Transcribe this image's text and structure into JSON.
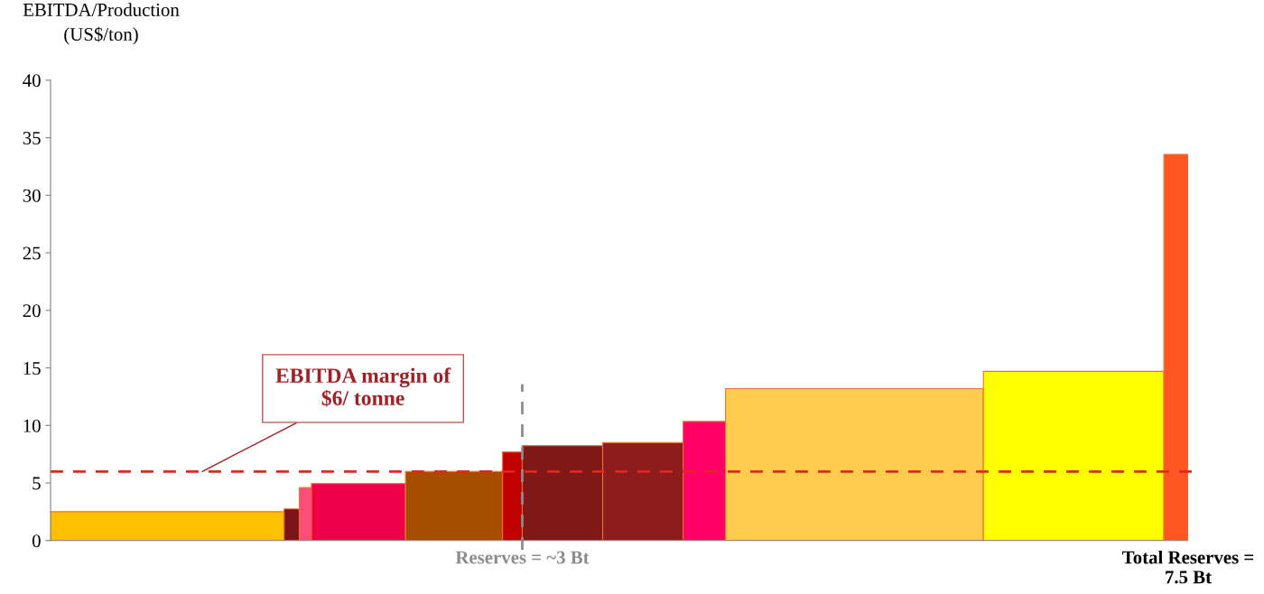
{
  "chart_data": {
    "type": "histogram",
    "ylabel": "EBITDA/Production\n(US$/ton)",
    "bins": [
      0,
      1.54,
      1.64,
      1.72,
      2.34,
      2.98,
      3.11,
      3.64,
      4.17,
      4.45,
      6.15,
      7.34,
      7.5
    ],
    "values": [
      2.5,
      2.75,
      4.6,
      4.95,
      6.0,
      7.7,
      8.25,
      8.5,
      10.35,
      13.2,
      14.7,
      33.55
    ],
    "colors": [
      "#ffc000",
      "#7b1416",
      "#ff4d79",
      "#ee0048",
      "#a64d00",
      "#c00000",
      "#801818",
      "#8f1c1c",
      "#ff0066",
      "#ffcc4d",
      "#ffff00",
      "#ff5722"
    ],
    "xlim": [
      0,
      7.5
    ],
    "xticks": [
      {
        "value": 3.11,
        "label": "Reserves = ~3 Bt"
      },
      {
        "value": 7.5,
        "label": "Total Reserves =\n7.5 Bt"
      }
    ],
    "ylim": [
      0,
      40
    ],
    "yticks": [
      0,
      5,
      10,
      15,
      20,
      25,
      30,
      35,
      40
    ],
    "grid": false,
    "ref_lines": [
      {
        "axis": "y",
        "value": 6,
        "label": "EBITDA margin of\n$6/ tonne",
        "color": "#e0281e",
        "line_style": "dashed"
      },
      {
        "axis": "x",
        "value": 3.11,
        "color": "#8c8c8c",
        "line_style": "dashed"
      }
    ]
  }
}
